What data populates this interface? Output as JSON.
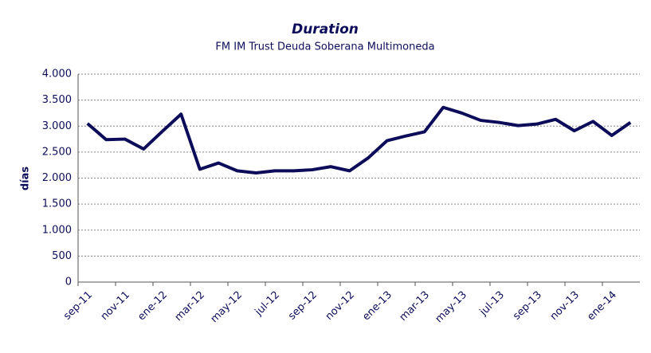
{
  "chart_data": {
    "type": "line",
    "title": "Duration",
    "subtitle": "FM IM Trust Deuda Soberana Multimoneda",
    "y_label": "días",
    "categories": [
      "sep-11",
      null,
      "nov-11",
      null,
      "ene-12",
      null,
      "mar-12",
      null,
      "may-12",
      null,
      "jul-12",
      null,
      "sep-12",
      null,
      "nov-12",
      null,
      "ene-13",
      null,
      "mar-13",
      null,
      "may-13",
      null,
      "jul-13",
      null,
      "sep-13",
      null,
      "nov-13",
      null,
      "ene-14",
      null
    ],
    "series": [
      {
        "name": "Duration",
        "color": "#0c0c5a",
        "values": [
          3050,
          2740,
          2750,
          2560,
          2900,
          3230,
          2170,
          2290,
          2140,
          2100,
          2140,
          2140,
          2160,
          2220,
          2140,
          2390,
          2720,
          2810,
          2890,
          3360,
          3250,
          3110,
          3070,
          3010,
          3040,
          3130,
          2910,
          3090,
          2820,
          3070
        ]
      }
    ],
    "ylim": [
      0,
      4000
    ],
    "yticks": [
      {
        "value": 0,
        "label": "0"
      },
      {
        "value": 500,
        "label": "500"
      },
      {
        "value": 1000,
        "label": "1.000"
      },
      {
        "value": 1500,
        "label": "1.500"
      },
      {
        "value": 2000,
        "label": "2.000"
      },
      {
        "value": 2500,
        "label": "2.500"
      },
      {
        "value": 3000,
        "label": "3.000"
      },
      {
        "value": 3500,
        "label": "3.500"
      },
      {
        "value": 4000,
        "label": "4.000"
      }
    ],
    "grid": true
  }
}
